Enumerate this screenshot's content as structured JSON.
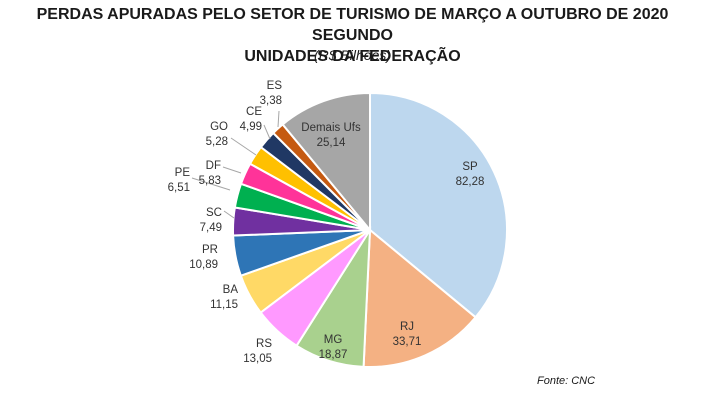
{
  "chart_data": {
    "type": "pie",
    "title_line1": "PERDAS APURADAS PELO SETOR DE TURISMO DE MARÇO A OUTUBRO DE 2020 SEGUNDO",
    "title_line2": "UNIDADES DA FEDERAÇÃO",
    "subtitle": "(R$ Bilhões)",
    "source": "Fonte: CNC",
    "slices": [
      {
        "name": "SP",
        "value": 82.28,
        "value_label": "82,28",
        "color": "#bdd7ee"
      },
      {
        "name": "RJ",
        "value": 33.71,
        "value_label": "33,71",
        "color": "#f4b183"
      },
      {
        "name": "MG",
        "value": 18.87,
        "value_label": "18,87",
        "color": "#a9d18e"
      },
      {
        "name": "RS",
        "value": 13.05,
        "value_label": "13,05",
        "color": "#ff99ff"
      },
      {
        "name": "BA",
        "value": 11.15,
        "value_label": "11,15",
        "color": "#ffd966"
      },
      {
        "name": "PR",
        "value": 10.89,
        "value_label": "10,89",
        "color": "#2e75b6"
      },
      {
        "name": "SC",
        "value": 7.49,
        "value_label": "7,49",
        "color": "#7030a0"
      },
      {
        "name": "PE",
        "value": 6.51,
        "value_label": "6,51",
        "color": "#00b050"
      },
      {
        "name": "DF",
        "value": 5.83,
        "value_label": "5,83",
        "color": "#ff3399"
      },
      {
        "name": "GO",
        "value": 5.28,
        "value_label": "5,28",
        "color": "#ffc000"
      },
      {
        "name": "CE",
        "value": 4.99,
        "value_label": "4,99",
        "color": "#203864"
      },
      {
        "name": "ES",
        "value": 3.38,
        "value_label": "3,38",
        "color": "#c55a11"
      },
      {
        "name": "Demais Ufs",
        "value": 25.14,
        "value_label": "25,14",
        "color": "#a6a6a6"
      }
    ]
  }
}
